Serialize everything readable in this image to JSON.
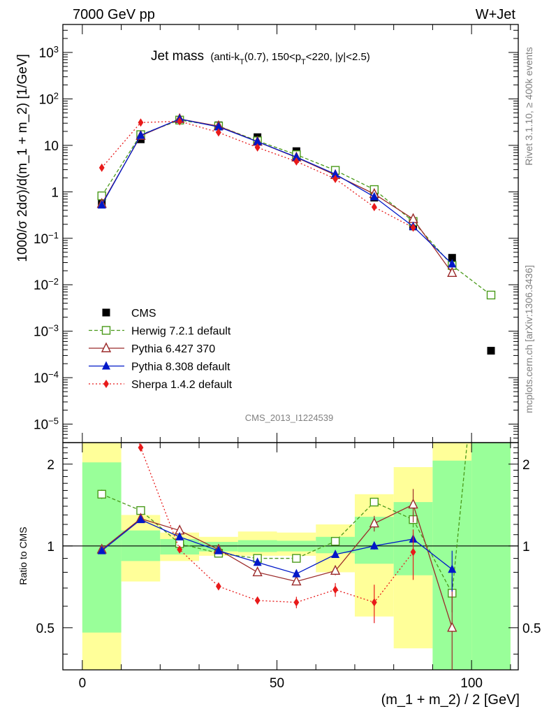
{
  "header": {
    "left": "7000 GeV pp",
    "right": "W+Jet"
  },
  "side_labels": {
    "rivet": "Rivet 3.1.10, ≥ 400k events",
    "mcplots": "mcplots.cern.ch [arXiv:1306.3436]"
  },
  "analysis_id": "CMS_2013_I1224539",
  "chart_data": {
    "type": "line",
    "title": {
      "main": "Jet mass",
      "sub": "(anti-k_T(0.7), 150<p_T<220, |y|<2.5)"
    },
    "xlabel": "(m_1 + m_2) / 2 [GeV]",
    "ylabel": "1000/σ 2dσ)/d(m_1 + m_2) [1/GeV]",
    "ratio_ylabel": "Ratio to CMS",
    "xlim": [
      -5,
      112
    ],
    "ylim": [
      4e-06,
      4000
    ],
    "yscale": "log",
    "ratio_ylim": [
      0.35,
      2.4
    ],
    "ratio_yscale": "log",
    "x_ticks": [
      0,
      50,
      100
    ],
    "y_ticks": [
      "10^-5",
      "10^-4",
      "10^-3",
      "10^-2",
      "10^-1",
      "1",
      "10",
      "10^2",
      "10^3"
    ],
    "ratio_ticks": [
      "0.5",
      "1",
      "2"
    ],
    "legend_position": "bottom-left",
    "bins": [
      [
        0,
        10
      ],
      [
        10,
        20
      ],
      [
        20,
        30
      ],
      [
        30,
        40
      ],
      [
        40,
        50
      ],
      [
        50,
        60
      ],
      [
        60,
        70
      ],
      [
        70,
        80
      ],
      [
        80,
        90
      ],
      [
        90,
        100
      ],
      [
        100,
        110
      ]
    ],
    "bin_centers": [
      5,
      15,
      25,
      35,
      45,
      55,
      65,
      75,
      85,
      95,
      105
    ],
    "data": {
      "name": "CMS",
      "values": [
        0.55,
        13.5,
        35,
        27,
        15,
        7.5,
        2.8,
        0.75,
        0.18,
        0.038,
        0.00038
      ]
    },
    "bands": {
      "green": [
        [
          0.48,
          2.03
        ],
        [
          0.88,
          1.14
        ],
        [
          0.93,
          1.06
        ],
        [
          0.955,
          1.035
        ],
        [
          0.95,
          1.05
        ],
        [
          0.955,
          1.045
        ],
        [
          0.94,
          1.08
        ],
        [
          0.86,
          1.28
        ],
        [
          0.78,
          1.45
        ],
        [
          0.3,
          2.06
        ],
        [
          0.3,
          2.5
        ]
      ],
      "yellow": [
        [
          0.3,
          2.5
        ],
        [
          0.74,
          1.3
        ],
        [
          0.88,
          1.12
        ],
        [
          0.92,
          1.08
        ],
        [
          0.92,
          1.13
        ],
        [
          0.92,
          1.12
        ],
        [
          0.8,
          1.2
        ],
        [
          0.55,
          1.55
        ],
        [
          0.42,
          1.95
        ],
        [
          0.3,
          2.5
        ],
        [
          0.3,
          2.5
        ]
      ]
    },
    "series": [
      {
        "name": "Herwig 7.2.1 default",
        "color": "#4a9a1a",
        "marker": "square-open",
        "dash": "5,3",
        "x": [
          5,
          15,
          25,
          35,
          45,
          55,
          65,
          75,
          85,
          95,
          105
        ],
        "values": [
          0.82,
          17,
          35,
          26,
          12.5,
          6.3,
          2.9,
          1.12,
          0.23,
          0.026,
          0.006
        ],
        "ratio": [
          1.55,
          1.35,
          1.02,
          0.94,
          0.9,
          0.9,
          1.04,
          1.45,
          1.25,
          0.67,
          18
        ],
        "ratio_err": [
          0.06,
          0.03,
          0.01,
          0.01,
          0.01,
          0.01,
          0.02,
          0.05,
          0.08,
          0.1,
          0
        ]
      },
      {
        "name": "Pythia 6.427 370",
        "color": "#9b2a2a",
        "marker": "triangle-open",
        "dash": "",
        "x": [
          5,
          15,
          25,
          35,
          45,
          55,
          65,
          75,
          85,
          95
        ],
        "values": [
          0.55,
          16,
          37,
          26,
          12,
          5.5,
          2.3,
          0.9,
          0.26,
          0.018
        ],
        "ratio": [
          0.97,
          1.26,
          1.14,
          0.97,
          0.8,
          0.74,
          0.81,
          1.21,
          1.42,
          0.5
        ],
        "ratio_err": [
          0.02,
          0.02,
          0.01,
          0.01,
          0.01,
          0.02,
          0.03,
          0.08,
          0.2,
          0.25
        ]
      },
      {
        "name": "Pythia 8.308 default",
        "color": "#0018c8",
        "marker": "triangle-filled",
        "dash": "",
        "x": [
          5,
          15,
          25,
          35,
          45,
          55,
          65,
          75,
          85,
          95
        ],
        "values": [
          0.52,
          16.5,
          37,
          25,
          12,
          5.6,
          2.4,
          0.78,
          0.18,
          0.028
        ],
        "ratio": [
          0.96,
          1.25,
          1.08,
          0.96,
          0.87,
          0.79,
          0.93,
          1.0,
          1.06,
          0.82
        ],
        "ratio_err": [
          0.02,
          0.02,
          0.01,
          0.01,
          0.01,
          0.01,
          0.02,
          0.03,
          0.05,
          0.14
        ]
      },
      {
        "name": "Sherpa 1.4.2 default",
        "color": "#e81a1a",
        "marker": "diamond-filled",
        "dash": "2,3",
        "x": [
          5,
          15,
          25,
          35,
          45,
          55,
          65,
          75,
          85
        ],
        "values": [
          3.3,
          31,
          33,
          19,
          9,
          4.5,
          1.9,
          0.47,
          0.17
        ],
        "ratio": [
          6.0,
          2.3,
          0.97,
          0.71,
          0.63,
          0.62,
          0.69,
          0.62,
          0.95
        ],
        "ratio_err": [
          0,
          0.03,
          0.01,
          0.01,
          0.02,
          0.03,
          0.04,
          0.1,
          0.2
        ]
      }
    ]
  }
}
